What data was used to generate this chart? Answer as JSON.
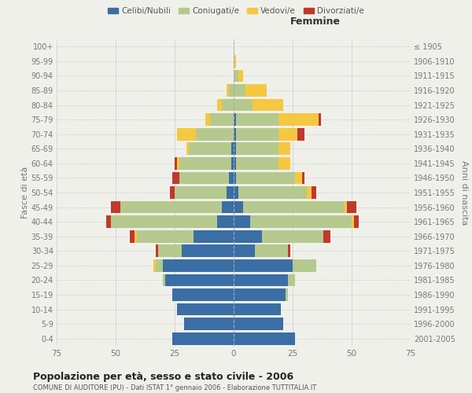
{
  "age_groups": [
    "0-4",
    "5-9",
    "10-14",
    "15-19",
    "20-24",
    "25-29",
    "30-34",
    "35-39",
    "40-44",
    "45-49",
    "50-54",
    "55-59",
    "60-64",
    "65-69",
    "70-74",
    "75-79",
    "80-84",
    "85-89",
    "90-94",
    "95-99",
    "100+"
  ],
  "birth_years": [
    "2001-2005",
    "1996-2000",
    "1991-1995",
    "1986-1990",
    "1981-1985",
    "1976-1980",
    "1971-1975",
    "1966-1970",
    "1961-1965",
    "1956-1960",
    "1951-1955",
    "1946-1950",
    "1941-1945",
    "1936-1940",
    "1931-1935",
    "1926-1930",
    "1921-1925",
    "1916-1920",
    "1911-1915",
    "1906-1910",
    "≤ 1905"
  ],
  "male": {
    "celibi": [
      26,
      21,
      24,
      26,
      29,
      30,
      22,
      17,
      7,
      5,
      3,
      2,
      1,
      1,
      0,
      0,
      0,
      0,
      0,
      0,
      0
    ],
    "coniugati": [
      0,
      0,
      0,
      0,
      1,
      3,
      10,
      24,
      45,
      43,
      22,
      21,
      22,
      18,
      16,
      10,
      5,
      2,
      0,
      0,
      0
    ],
    "vedovi": [
      0,
      0,
      0,
      0,
      0,
      1,
      0,
      1,
      0,
      0,
      0,
      0,
      1,
      1,
      8,
      2,
      2,
      1,
      0,
      0,
      0
    ],
    "divorziati": [
      0,
      0,
      0,
      0,
      0,
      0,
      1,
      2,
      2,
      4,
      2,
      3,
      1,
      0,
      0,
      0,
      0,
      0,
      0,
      0,
      0
    ]
  },
  "female": {
    "nubili": [
      26,
      21,
      20,
      22,
      23,
      25,
      9,
      12,
      7,
      4,
      2,
      1,
      1,
      1,
      1,
      1,
      0,
      0,
      0,
      0,
      0
    ],
    "coniugate": [
      0,
      0,
      0,
      1,
      3,
      10,
      14,
      26,
      43,
      43,
      29,
      25,
      18,
      18,
      18,
      18,
      8,
      5,
      2,
      0,
      0
    ],
    "vedove": [
      0,
      0,
      0,
      0,
      0,
      0,
      0,
      0,
      1,
      1,
      2,
      3,
      5,
      5,
      8,
      17,
      13,
      9,
      2,
      1,
      0
    ],
    "divorziate": [
      0,
      0,
      0,
      0,
      0,
      0,
      1,
      3,
      2,
      4,
      2,
      1,
      0,
      0,
      3,
      1,
      0,
      0,
      0,
      0,
      0
    ]
  },
  "colors": {
    "celibi": "#3a6ea5",
    "coniugati": "#b5c98e",
    "vedovi": "#f5c842",
    "divorziati": "#c0392b"
  },
  "xlim": 75,
  "title": "Popolazione per età, sesso e stato civile - 2006",
  "subtitle": "COMUNE DI AUDITORE (PU) - Dati ISTAT 1° gennaio 2006 - Elaborazione TUTTITALIA.IT",
  "ylabel_left": "Fasce di età",
  "ylabel_right": "Anni di nascita",
  "xlabel_right": "Femmine",
  "bg_color": "#f0f0eb",
  "grid_color": "#cccccc",
  "bar_height": 0.85
}
